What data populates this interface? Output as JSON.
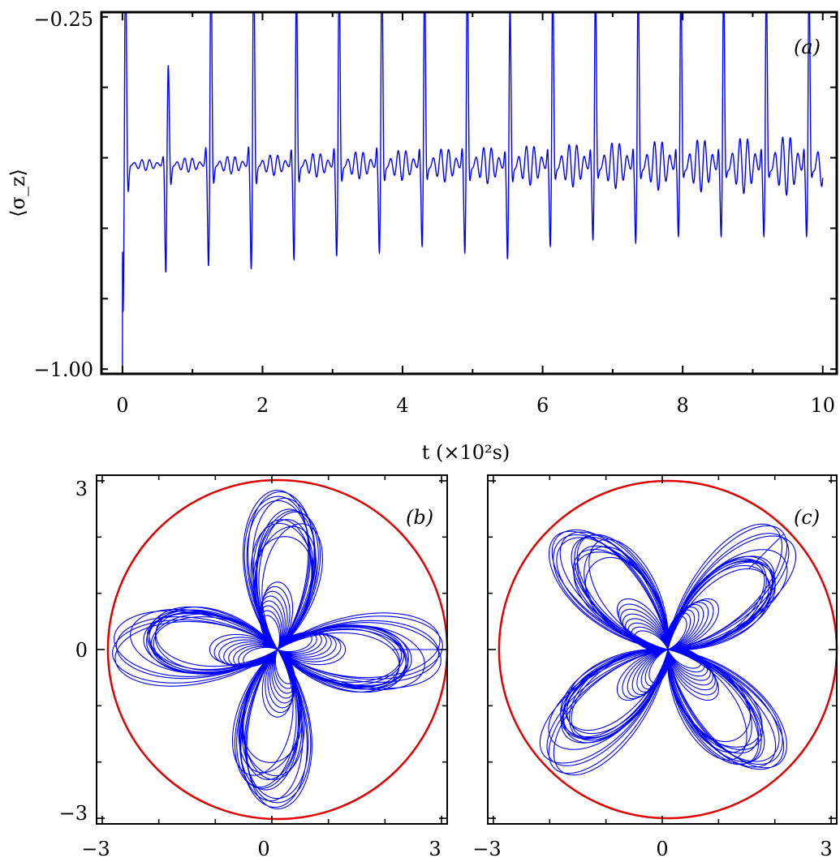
{
  "chart_data": [
    {
      "type": "line",
      "panel": "(a)",
      "xlabel": "t (×10²s)",
      "ylabel": "⟨σ_z⟩",
      "xlim": [
        -0.3,
        10.2
      ],
      "ylim": [
        -1.01,
        -0.24
      ],
      "xticks": [
        0,
        2,
        4,
        6,
        8,
        10
      ],
      "xtick_labels": [
        "0",
        "2",
        "4",
        "6",
        "8",
        "10"
      ],
      "ytick_labels": {
        "top": "−0.25",
        "bottom": "−1.00"
      },
      "baseline": -0.565,
      "period": 0.61,
      "first_burst": 0.03,
      "burst_amplitudes_up": [
        0.53,
        0.25,
        0.53,
        0.55,
        0.46,
        0.5,
        0.52,
        0.48,
        0.5,
        0.4,
        0.47,
        0.46,
        0.48,
        0.47,
        0.47,
        0.47,
        0.47
      ],
      "burst_amplitudes_down": [
        0.45,
        0.33,
        0.31,
        0.32,
        0.29,
        0.28,
        0.27,
        0.25,
        0.27,
        0.29,
        0.25,
        0.23,
        0.24,
        0.22,
        0.22,
        0.22
      ],
      "series": [
        {
          "values_note_free": true,
          "color": "#0000ff"
        }
      ]
    },
    {
      "type": "line",
      "panel": "(b)",
      "xlim": [
        -3.1,
        3.1
      ],
      "ylim": [
        -3.1,
        3.1
      ],
      "xtick_labels": [
        "−3",
        "0",
        "3"
      ],
      "ytick_labels": [
        "3",
        "0",
        "−3"
      ],
      "circle_radius": 3,
      "petals": 4,
      "rotation_deg": 0,
      "curve_color": "#0000ff",
      "circle_color": "#e00000"
    },
    {
      "type": "line",
      "panel": "(c)",
      "xlim": [
        -3.1,
        3.1
      ],
      "ylim": [
        -3.1,
        3.1
      ],
      "xtick_labels": [
        "−3",
        "0",
        "3"
      ],
      "circle_radius": 3,
      "petals": 4,
      "rotation_deg": 45,
      "curve_color": "#0000ff",
      "circle_color": "#e00000"
    }
  ]
}
